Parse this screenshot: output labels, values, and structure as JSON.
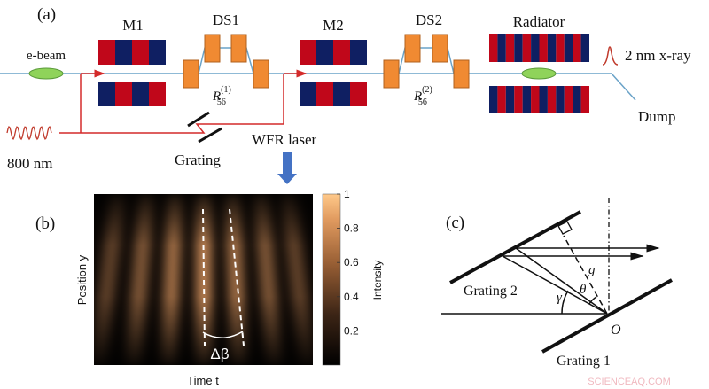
{
  "colors": {
    "magnet_red": "#c0071a",
    "magnet_blue": "#0f1f62",
    "chicane": "#f08a32",
    "bunch": "#8fd35a",
    "beamline": "#6aa3c8",
    "laser": "#d42a2a",
    "arrow_blue": "#4472c4",
    "watermark": "#f0b8bf"
  },
  "panel_a": {
    "label": "(a)",
    "ebeam_label": "e-beam",
    "m1_label": "M1",
    "ds1_label": "DS1",
    "r56_1": {
      "base": "R",
      "sub": "56",
      "sup": "(1)"
    },
    "m2_label": "M2",
    "ds2_label": "DS2",
    "r56_2": {
      "base": "R",
      "sub": "56",
      "sup": "(2)"
    },
    "radiator_label": "Radiator",
    "xray_label": "2 nm x-ray",
    "dump_label": "Dump",
    "laser_label": "800 nm",
    "grating_label": "Grating",
    "wfr_label": "WFR laser"
  },
  "panel_b": {
    "label": "(b)",
    "xlabel": "Time t",
    "ylabel": "Position y",
    "colorbar_label": "Intensity",
    "colorbar_ticks": [
      "1",
      "0.8",
      "0.6",
      "0.4",
      "0.2"
    ],
    "annotation": "Δβ"
  },
  "panel_c": {
    "label": "(c)",
    "grating2_label": "Grating 2",
    "grating1_label": "Grating 1",
    "origin_label": "O",
    "g_label": "g",
    "theta_label": "θ",
    "gamma_label": "γ"
  },
  "watermark": "SCIENCEAQ.COM"
}
